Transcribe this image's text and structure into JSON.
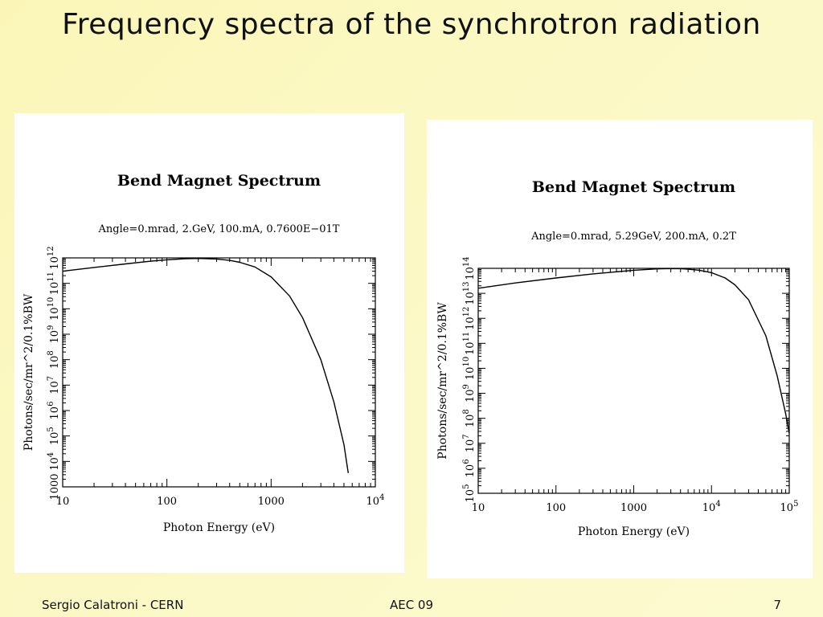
{
  "slide": {
    "title": "Frequency spectra of the synchrotron radiation",
    "footer_left": "Sergio Calatroni - CERN",
    "footer_center": "AEC 09",
    "footer_right": "7"
  },
  "chart_data": [
    {
      "type": "line",
      "title": "Bend Magnet Spectrum",
      "subtitle": "Angle=0.mrad, 2.GeV, 100.mA, 0.7600E−01T",
      "xlabel": "Photon Energy (eV)",
      "ylabel": "Photons/sec/mr^2/0.1%BW",
      "x_scale": "log",
      "y_scale": "log",
      "xlim": [
        10,
        10000
      ],
      "ylim": [
        1000,
        1000000000000.0
      ],
      "x_ticks": [
        {
          "v": 10,
          "label": "10"
        },
        {
          "v": 100,
          "label": "100"
        },
        {
          "v": 1000,
          "label": "1000"
        },
        {
          "v": 10000,
          "label": "10",
          "sup": "4"
        }
      ],
      "y_ticks": [
        {
          "v": 1000,
          "label": "1000",
          "sup": ""
        },
        {
          "v": 10000.0,
          "label": "10",
          "sup": "4"
        },
        {
          "v": 100000.0,
          "label": "10",
          "sup": "5"
        },
        {
          "v": 1000000.0,
          "label": "10",
          "sup": "6"
        },
        {
          "v": 10000000.0,
          "label": "10",
          "sup": "7"
        },
        {
          "v": 100000000.0,
          "label": "10",
          "sup": "8"
        },
        {
          "v": 1000000000.0,
          "label": "10",
          "sup": "9"
        },
        {
          "v": 10000000000.0,
          "label": "10",
          "sup": "10"
        },
        {
          "v": 100000000000.0,
          "label": "10",
          "sup": "11"
        },
        {
          "v": 1000000000000.0,
          "label": "10",
          "sup": "12"
        }
      ],
      "series": [
        {
          "x": [
            10,
            20,
            40,
            70,
            100,
            150,
            200,
            300,
            400,
            500,
            700,
            1000,
            1500,
            2000,
            3000,
            4000,
            5000,
            5500
          ],
          "y": [
            300000000000.0,
            420000000000.0,
            580000000000.0,
            740000000000.0,
            840000000000.0,
            930000000000.0,
            950000000000.0,
            900000000000.0,
            800000000000.0,
            670000000000.0,
            440000000000.0,
            180000000000.0,
            32000000000.0,
            4500000000.0,
            100000000.0,
            2200000.0,
            45000.0,
            3500.0
          ]
        }
      ],
      "grid": false
    },
    {
      "type": "line",
      "title": "Bend Magnet Spectrum",
      "subtitle": "Angle=0.mrad, 5.29GeV, 200.mA, 0.2T",
      "xlabel": "Photon Energy (eV)",
      "ylabel": "Photons/sec/mr^2/0.1%BW",
      "x_scale": "log",
      "y_scale": "log",
      "xlim": [
        10,
        100000
      ],
      "ylim": [
        100000.0,
        100000000000000.0
      ],
      "x_ticks": [
        {
          "v": 10,
          "label": "10"
        },
        {
          "v": 100,
          "label": "100"
        },
        {
          "v": 1000,
          "label": "1000"
        },
        {
          "v": 10000,
          "label": "10",
          "sup": "4"
        },
        {
          "v": 100000,
          "label": "10",
          "sup": "5"
        }
      ],
      "y_ticks": [
        {
          "v": 100000.0,
          "label": "10",
          "sup": "5"
        },
        {
          "v": 1000000.0,
          "label": "10",
          "sup": "6"
        },
        {
          "v": 10000000.0,
          "label": "10",
          "sup": "7"
        },
        {
          "v": 100000000.0,
          "label": "10",
          "sup": "8"
        },
        {
          "v": 1000000000.0,
          "label": "10",
          "sup": "9"
        },
        {
          "v": 10000000000.0,
          "label": "10",
          "sup": "10"
        },
        {
          "v": 100000000000.0,
          "label": "10",
          "sup": "11"
        },
        {
          "v": 1000000000000.0,
          "label": "10",
          "sup": "12"
        },
        {
          "v": 10000000000000.0,
          "label": "10",
          "sup": "13"
        },
        {
          "v": 100000000000000.0,
          "label": "10",
          "sup": "14"
        }
      ],
      "series": [
        {
          "x": [
            10,
            30,
            100,
            300,
            1000,
            2000,
            3000,
            4000,
            5000,
            7000,
            10000,
            15000,
            20000,
            30000,
            50000,
            70000,
            90000,
            100000
          ],
          "y": [
            16000000000000.0,
            26000000000000.0,
            41000000000000.0,
            60000000000000.0,
            84000000000000.0,
            95000000000000.0,
            98000000000000.0,
            97000000000000.0,
            93000000000000.0,
            84000000000000.0,
            67000000000000.0,
            41000000000000.0,
            22000000000000.0,
            5500000000000.0,
            200000000000.0,
            5000000000.0,
            150000000.0,
            25000000.0
          ]
        }
      ],
      "grid": false
    }
  ]
}
